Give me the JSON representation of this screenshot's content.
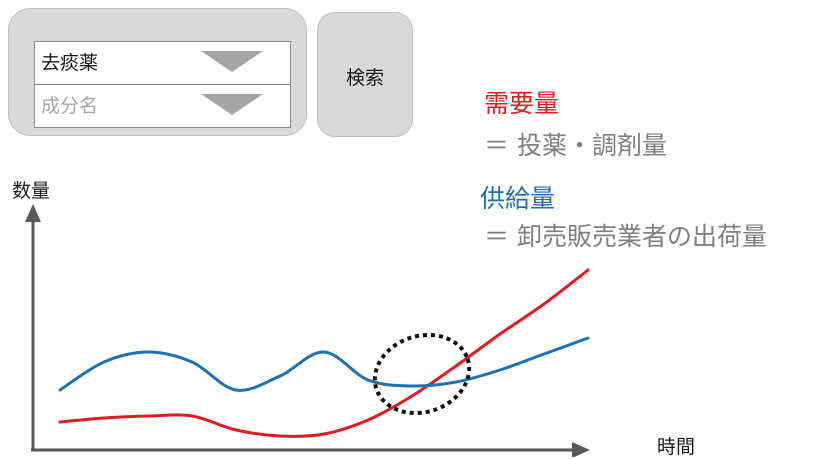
{
  "search_panel": {
    "drug_select_value": "去痰薬",
    "ingredient_select_placeholder": "成分名",
    "search_button_label": "検索"
  },
  "legend": {
    "demand": {
      "title": "需要量",
      "description": "＝ 投薬・調剤量",
      "color": "#e21b23"
    },
    "supply": {
      "title": "供給量",
      "description": "＝ 卸売販売業者の出荷量",
      "color": "#1f6fb3"
    }
  },
  "chart_data": {
    "type": "line",
    "xlabel": "時間",
    "ylabel": "数量",
    "x": [
      0,
      1,
      2,
      3,
      4,
      5,
      6,
      7,
      8,
      9,
      10,
      11,
      12
    ],
    "series": [
      {
        "name": "需要量",
        "color": "#e21b23",
        "values": [
          14,
          16,
          17,
          17,
          10,
          7,
          8,
          15,
          27,
          42,
          58,
          73,
          90
        ]
      },
      {
        "name": "供給量",
        "color": "#1f6fb3",
        "values": [
          30,
          44,
          49,
          44,
          30,
          37,
          49,
          35,
          32,
          34,
          40,
          48,
          56
        ]
      }
    ],
    "ylim": [
      0,
      120
    ],
    "grid": false,
    "annotations": [
      {
        "type": "dashed-ellipse",
        "label": "",
        "target": "crossing of 需要量 and 供給量"
      }
    ]
  }
}
